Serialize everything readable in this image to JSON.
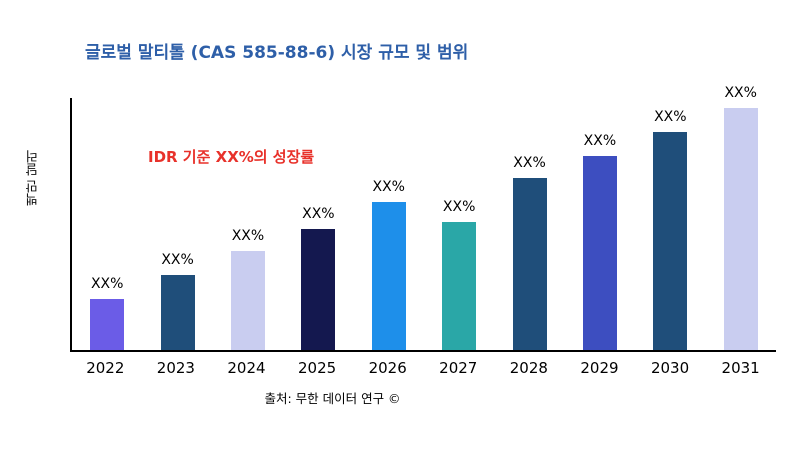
{
  "title": "글로벌 말티톨 (CAS 585-88-6) 시장 규모 및 범위",
  "annotation": "IDR 기준 XX%의 성장률",
  "source": "출처: 무한 데이터 연구 ©",
  "colors": {
    "title": "#2E5FA8",
    "annotation": "#E8312A",
    "axis": "#000000",
    "background": "#FFFFFF"
  },
  "chart_data": {
    "type": "bar",
    "title": "글로벌 말티톨 (CAS 585-88-6) 시장 규모 및 범위",
    "xlabel": "",
    "ylabel": "백만 달러",
    "categories": [
      "2022",
      "2023",
      "2024",
      "2025",
      "2026",
      "2027",
      "2028",
      "2029",
      "2030",
      "2031"
    ],
    "values": [
      21,
      31,
      41,
      50,
      61,
      53,
      71,
      80,
      90,
      100
    ],
    "bar_labels": [
      "XX%",
      "XX%",
      "XX%",
      "XX%",
      "XX%",
      "XX%",
      "XX%",
      "XX%",
      "XX%",
      "XX%"
    ],
    "bar_colors": [
      "#6B5CE7",
      "#1F4E7A",
      "#C9CDF0",
      "#14184F",
      "#1E8FEA",
      "#2AA7A7",
      "#1F4E7A",
      "#3D4EC0",
      "#1F4E7A",
      "#C9CDF0"
    ],
    "ylim": [
      0,
      105
    ],
    "grid": false,
    "legend": false,
    "annotation": "IDR 기준 XX%의 성장률"
  }
}
